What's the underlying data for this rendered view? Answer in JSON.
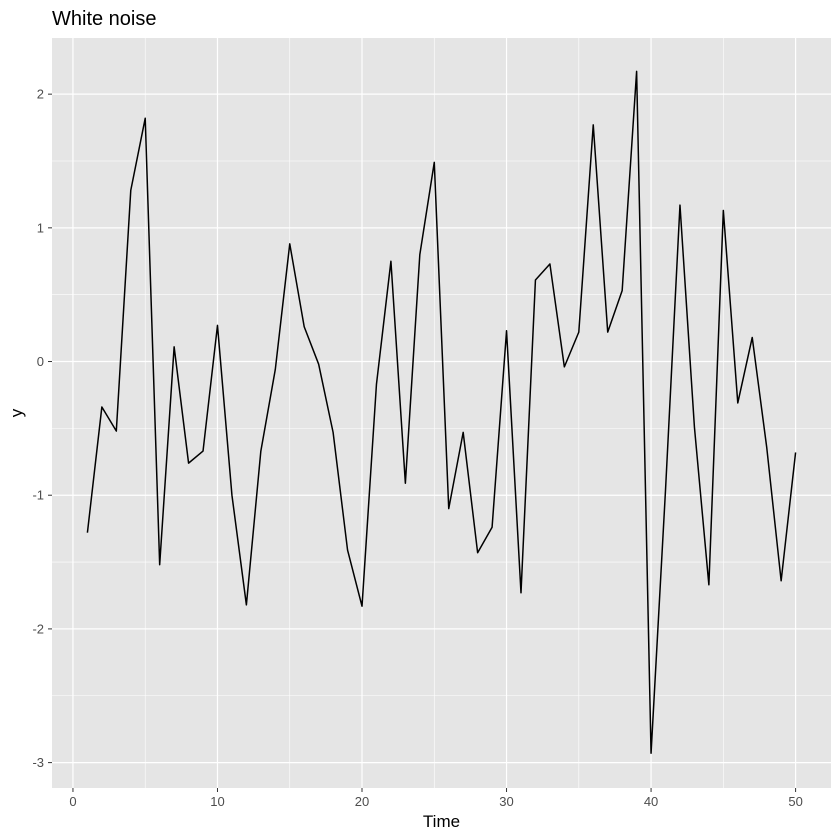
{
  "chart_data": {
    "type": "line",
    "title": "White noise",
    "xlabel": "Time",
    "ylabel": "y",
    "xlim": [
      -1.45,
      52.45
    ],
    "ylim": [
      -3.19,
      2.42
    ],
    "x_ticks": [
      0,
      10,
      20,
      30,
      40,
      50
    ],
    "y_ticks": [
      -3,
      -2,
      -1,
      0,
      1,
      2
    ],
    "x_tick_labels": [
      "0",
      "10",
      "20",
      "30",
      "40",
      "50"
    ],
    "y_tick_labels": [
      "-3",
      "-2",
      "-1",
      "0",
      "1",
      "2"
    ],
    "x_minor": [
      5,
      15,
      25,
      35,
      45
    ],
    "y_minor": [
      -2.5,
      -1.5,
      -0.5,
      0.5,
      1.5
    ],
    "grid": true,
    "legend": "none",
    "colors": {
      "panel": "#e5e5e5",
      "grid": "#ffffff",
      "line": "#000000"
    },
    "series": [
      {
        "x": [
          1,
          2,
          3,
          4,
          5,
          6,
          7,
          8,
          9,
          10,
          11,
          12,
          13,
          14,
          15,
          16,
          17,
          18,
          19,
          20,
          21,
          22,
          23,
          24,
          25,
          26,
          27,
          28,
          29,
          30,
          31,
          32,
          33,
          34,
          35,
          36,
          37,
          38,
          39,
          40,
          41,
          42,
          43,
          44,
          45,
          46,
          47,
          48,
          49,
          50
        ],
        "values": [
          -1.28,
          -0.34,
          -0.52,
          1.28,
          1.82,
          -1.52,
          0.11,
          -0.76,
          -0.67,
          0.27,
          -1.0,
          -1.82,
          -0.67,
          -0.06,
          0.88,
          0.26,
          -0.02,
          -0.53,
          -1.41,
          -1.83,
          -0.17,
          0.75,
          -0.91,
          0.8,
          1.49,
          -1.1,
          -0.53,
          -1.43,
          -1.24,
          0.23,
          -1.73,
          0.61,
          0.73,
          -0.04,
          0.22,
          1.77,
          0.22,
          0.53,
          2.17,
          -2.93,
          -0.96,
          1.17,
          -0.49,
          -1.67,
          1.13,
          -0.31,
          0.18,
          -0.64,
          -1.64,
          -0.68
        ]
      }
    ]
  }
}
